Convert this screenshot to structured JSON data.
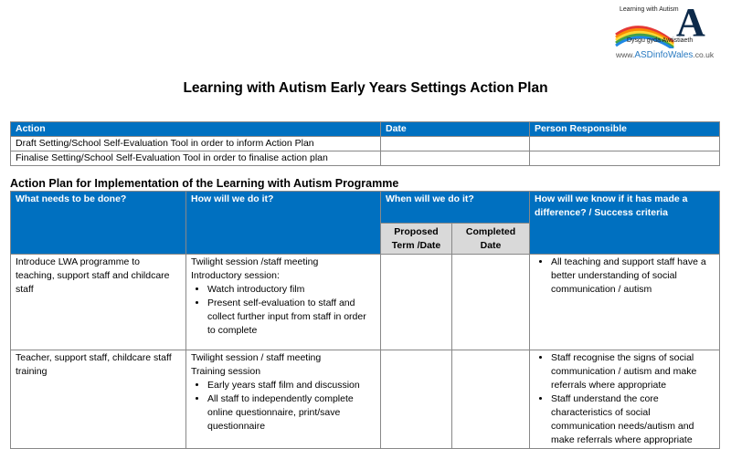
{
  "logo": {
    "line1": "Learning with Autism",
    "line2": "Dysgu gyda Awtistiaeth",
    "url_prefix": "www.",
    "url_brand": "ASDinfoWales",
    "url_suffix": ".co.uk",
    "letter": "A"
  },
  "title": "Learning with Autism Early Years Settings Action Plan",
  "table1": {
    "headers": [
      "Action",
      "Date",
      "Person Responsible"
    ],
    "rows": [
      [
        "Draft Setting/School Self-Evaluation Tool in order to inform Action Plan",
        "",
        ""
      ],
      [
        "Finalise Setting/School Self-Evaluation Tool in order to finalise action plan",
        "",
        ""
      ]
    ]
  },
  "section_title": "Action Plan for Implementation of the Learning with Autism Programme",
  "table2": {
    "headers": [
      "What needs to be done?",
      "How will we do it?",
      "When will we do it?",
      "How will we know if it has made a difference? / Success criteria"
    ],
    "subheaders": [
      "Proposed Term /Date",
      "Completed Date"
    ],
    "rows": [
      {
        "what": "Introduce LWA programme to teaching, support staff and childcare staff",
        "how_lines": [
          "Twilight session /staff meeting",
          "Introductory session:"
        ],
        "how_bullets": [
          "Watch introductory film",
          "Present self-evaluation to staff and collect further input from staff in order to complete"
        ],
        "proposed": "",
        "completed": "",
        "criteria": [
          "All teaching and support staff have a better understanding of social communication / autism"
        ]
      },
      {
        "what": "Teacher, support staff, childcare staff training",
        "how_lines": [
          "Twilight session / staff meeting",
          "Training session"
        ],
        "how_bullets": [
          "Early years staff film and discussion",
          "All staff to independently complete online questionnaire, print/save questionnaire"
        ],
        "proposed": "",
        "completed": "",
        "criteria": [
          "Staff recognise the signs of social communication / autism and make referrals where appropriate",
          "Staff understand the core characteristics of social communication needs/autism and make referrals where appropriate"
        ]
      }
    ]
  }
}
